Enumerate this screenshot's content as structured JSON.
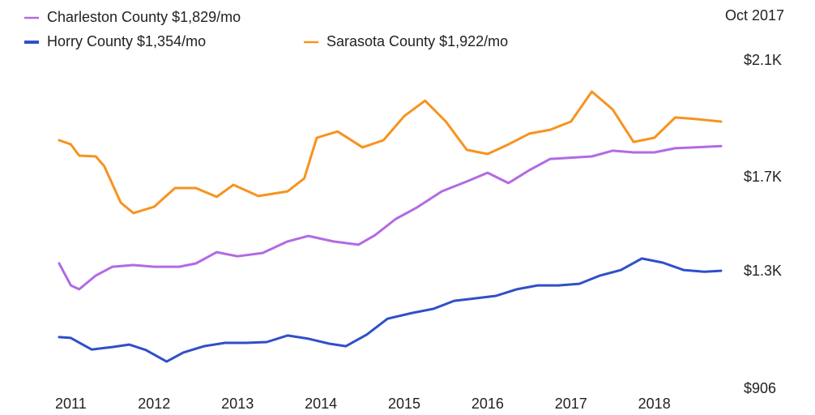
{
  "chart_data": {
    "type": "line",
    "annotation": "Oct 2017",
    "xlim": [
      2010.86,
      2018.8
    ],
    "xticks": [
      2011,
      2012,
      2013,
      2014,
      2015,
      2016,
      2017,
      2018
    ],
    "ylim": [
      906,
      2100
    ],
    "yticks": [
      {
        "value": 906,
        "label": "$906"
      },
      {
        "value": 1333,
        "label": "$1.3K"
      },
      {
        "value": 1675,
        "label": "$1.7K"
      },
      {
        "value": 2100,
        "label": "$2.1K"
      }
    ],
    "grid": false,
    "series": [
      {
        "name": "Charleston County $1,829/mo",
        "color": "#b36ae2",
        "x": [
          2010.86,
          2011,
          2011.1,
          2011.3,
          2011.5,
          2011.75,
          2012,
          2012.3,
          2012.5,
          2012.75,
          2013,
          2013.3,
          2013.6,
          2013.85,
          2014.15,
          2014.45,
          2014.65,
          2014.9,
          2015.15,
          2015.45,
          2015.75,
          2016,
          2016.25,
          2016.5,
          2016.75,
          2017.25,
          2017.5,
          2017.75,
          2018,
          2018.25,
          2018.5,
          2018.8
        ],
        "values": [
          1363,
          1283,
          1269,
          1319,
          1351,
          1357,
          1351,
          1351,
          1363,
          1404,
          1389,
          1401,
          1443,
          1463,
          1443,
          1431,
          1466,
          1525,
          1566,
          1625,
          1661,
          1693,
          1655,
          1702,
          1743,
          1752,
          1773,
          1767,
          1767,
          1782,
          1785,
          1790
        ]
      },
      {
        "name": "Horry County $1,354/mo",
        "color": "#2f4fc9",
        "x": [
          2010.86,
          2011,
          2011.25,
          2011.5,
          2011.7,
          2011.9,
          2012.15,
          2012.35,
          2012.6,
          2012.85,
          2013.1,
          2013.35,
          2013.6,
          2013.85,
          2014.1,
          2014.3,
          2014.55,
          2014.8,
          2015.1,
          2015.35,
          2015.6,
          2015.85,
          2016.1,
          2016.35,
          2016.6,
          2016.85,
          2017.1,
          2017.35,
          2017.6,
          2017.85,
          2018.1,
          2018.35,
          2018.6,
          2018.8
        ],
        "values": [
          1095,
          1092,
          1050,
          1059,
          1068,
          1048,
          1006,
          1039,
          1062,
          1074,
          1074,
          1077,
          1101,
          1089,
          1071,
          1062,
          1104,
          1162,
          1183,
          1198,
          1227,
          1236,
          1245,
          1269,
          1283,
          1283,
          1289,
          1319,
          1339,
          1381,
          1366,
          1339,
          1333,
          1336
        ]
      },
      {
        "name": "Sarasota County $1,922/mo",
        "color": "#f7931e",
        "x": [
          2010.86,
          2011,
          2011.1,
          2011.3,
          2011.4,
          2011.6,
          2011.75,
          2012,
          2012.25,
          2012.5,
          2012.75,
          2012.95,
          2013.25,
          2013.6,
          2013.8,
          2013.95,
          2014.2,
          2014.5,
          2014.75,
          2015,
          2015.25,
          2015.5,
          2015.75,
          2016,
          2016.25,
          2016.5,
          2016.75,
          2017,
          2017.25,
          2017.5,
          2017.75,
          2018,
          2018.25,
          2018.5,
          2018.8
        ],
        "values": [
          1811,
          1796,
          1755,
          1752,
          1717,
          1584,
          1546,
          1569,
          1637,
          1637,
          1605,
          1649,
          1608,
          1625,
          1672,
          1820,
          1843,
          1785,
          1811,
          1899,
          1955,
          1879,
          1776,
          1761,
          1796,
          1835,
          1849,
          1879,
          1988,
          1923,
          1805,
          1820,
          1894,
          1888,
          1879
        ]
      }
    ]
  }
}
